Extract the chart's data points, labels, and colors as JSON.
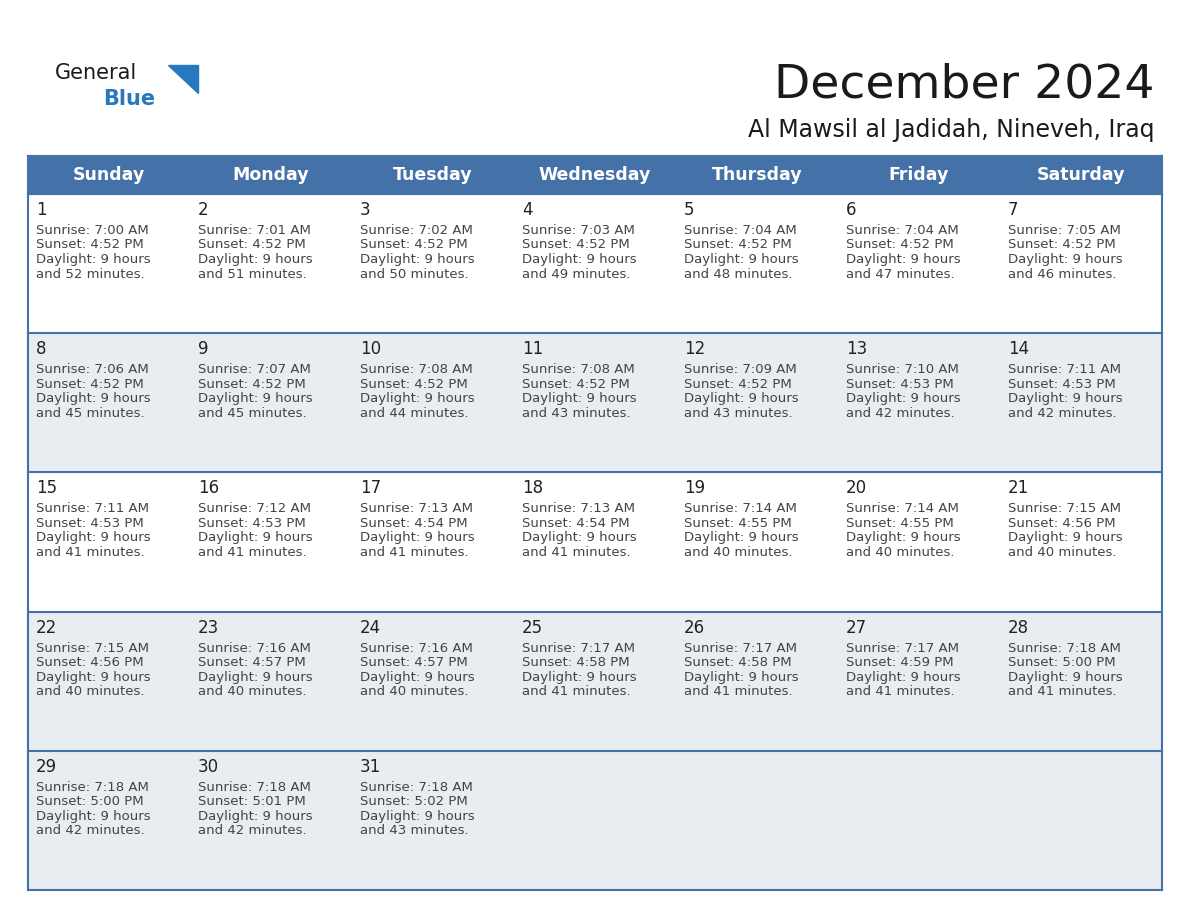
{
  "title": "December 2024",
  "subtitle": "Al Mawsil al Jadidah, Nineveh, Iraq",
  "header_bg_color": "#4472a8",
  "header_text_color": "#ffffff",
  "header_font_size": 12.5,
  "day_names": [
    "Sunday",
    "Monday",
    "Tuesday",
    "Wednesday",
    "Thursday",
    "Friday",
    "Saturday"
  ],
  "title_font_size": 34,
  "subtitle_font_size": 17,
  "title_color": "#1a1a1a",
  "subtitle_color": "#1a1a1a",
  "cell_bg_white": "#ffffff",
  "cell_bg_gray": "#e8edf2",
  "date_font_size": 12,
  "info_font_size": 9.5,
  "date_text_color": "#222222",
  "info_text_color": "#444444",
  "grid_color": "#4472a8",
  "logo_general_color": "#1a1a1a",
  "logo_blue_color": "#2878c0",
  "weeks": [
    [
      {
        "day": 1,
        "sunrise": "7:00 AM",
        "sunset": "4:52 PM",
        "daylight": "9 hours and 52 minutes"
      },
      {
        "day": 2,
        "sunrise": "7:01 AM",
        "sunset": "4:52 PM",
        "daylight": "9 hours and 51 minutes"
      },
      {
        "day": 3,
        "sunrise": "7:02 AM",
        "sunset": "4:52 PM",
        "daylight": "9 hours and 50 minutes"
      },
      {
        "day": 4,
        "sunrise": "7:03 AM",
        "sunset": "4:52 PM",
        "daylight": "9 hours and 49 minutes"
      },
      {
        "day": 5,
        "sunrise": "7:04 AM",
        "sunset": "4:52 PM",
        "daylight": "9 hours and 48 minutes"
      },
      {
        "day": 6,
        "sunrise": "7:04 AM",
        "sunset": "4:52 PM",
        "daylight": "9 hours and 47 minutes"
      },
      {
        "day": 7,
        "sunrise": "7:05 AM",
        "sunset": "4:52 PM",
        "daylight": "9 hours and 46 minutes"
      }
    ],
    [
      {
        "day": 8,
        "sunrise": "7:06 AM",
        "sunset": "4:52 PM",
        "daylight": "9 hours and 45 minutes"
      },
      {
        "day": 9,
        "sunrise": "7:07 AM",
        "sunset": "4:52 PM",
        "daylight": "9 hours and 45 minutes"
      },
      {
        "day": 10,
        "sunrise": "7:08 AM",
        "sunset": "4:52 PM",
        "daylight": "9 hours and 44 minutes"
      },
      {
        "day": 11,
        "sunrise": "7:08 AM",
        "sunset": "4:52 PM",
        "daylight": "9 hours and 43 minutes"
      },
      {
        "day": 12,
        "sunrise": "7:09 AM",
        "sunset": "4:52 PM",
        "daylight": "9 hours and 43 minutes"
      },
      {
        "day": 13,
        "sunrise": "7:10 AM",
        "sunset": "4:53 PM",
        "daylight": "9 hours and 42 minutes"
      },
      {
        "day": 14,
        "sunrise": "7:11 AM",
        "sunset": "4:53 PM",
        "daylight": "9 hours and 42 minutes"
      }
    ],
    [
      {
        "day": 15,
        "sunrise": "7:11 AM",
        "sunset": "4:53 PM",
        "daylight": "9 hours and 41 minutes"
      },
      {
        "day": 16,
        "sunrise": "7:12 AM",
        "sunset": "4:53 PM",
        "daylight": "9 hours and 41 minutes"
      },
      {
        "day": 17,
        "sunrise": "7:13 AM",
        "sunset": "4:54 PM",
        "daylight": "9 hours and 41 minutes"
      },
      {
        "day": 18,
        "sunrise": "7:13 AM",
        "sunset": "4:54 PM",
        "daylight": "9 hours and 41 minutes"
      },
      {
        "day": 19,
        "sunrise": "7:14 AM",
        "sunset": "4:55 PM",
        "daylight": "9 hours and 40 minutes"
      },
      {
        "day": 20,
        "sunrise": "7:14 AM",
        "sunset": "4:55 PM",
        "daylight": "9 hours and 40 minutes"
      },
      {
        "day": 21,
        "sunrise": "7:15 AM",
        "sunset": "4:56 PM",
        "daylight": "9 hours and 40 minutes"
      }
    ],
    [
      {
        "day": 22,
        "sunrise": "7:15 AM",
        "sunset": "4:56 PM",
        "daylight": "9 hours and 40 minutes"
      },
      {
        "day": 23,
        "sunrise": "7:16 AM",
        "sunset": "4:57 PM",
        "daylight": "9 hours and 40 minutes"
      },
      {
        "day": 24,
        "sunrise": "7:16 AM",
        "sunset": "4:57 PM",
        "daylight": "9 hours and 40 minutes"
      },
      {
        "day": 25,
        "sunrise": "7:17 AM",
        "sunset": "4:58 PM",
        "daylight": "9 hours and 41 minutes"
      },
      {
        "day": 26,
        "sunrise": "7:17 AM",
        "sunset": "4:58 PM",
        "daylight": "9 hours and 41 minutes"
      },
      {
        "day": 27,
        "sunrise": "7:17 AM",
        "sunset": "4:59 PM",
        "daylight": "9 hours and 41 minutes"
      },
      {
        "day": 28,
        "sunrise": "7:18 AM",
        "sunset": "5:00 PM",
        "daylight": "9 hours and 41 minutes"
      }
    ],
    [
      {
        "day": 29,
        "sunrise": "7:18 AM",
        "sunset": "5:00 PM",
        "daylight": "9 hours and 42 minutes"
      },
      {
        "day": 30,
        "sunrise": "7:18 AM",
        "sunset": "5:01 PM",
        "daylight": "9 hours and 42 minutes"
      },
      {
        "day": 31,
        "sunrise": "7:18 AM",
        "sunset": "5:02 PM",
        "daylight": "9 hours and 43 minutes"
      },
      null,
      null,
      null,
      null
    ]
  ],
  "week_bg_colors": [
    "#ffffff",
    "#e8edf2",
    "#ffffff",
    "#e8edf2",
    "#e8edf2"
  ]
}
